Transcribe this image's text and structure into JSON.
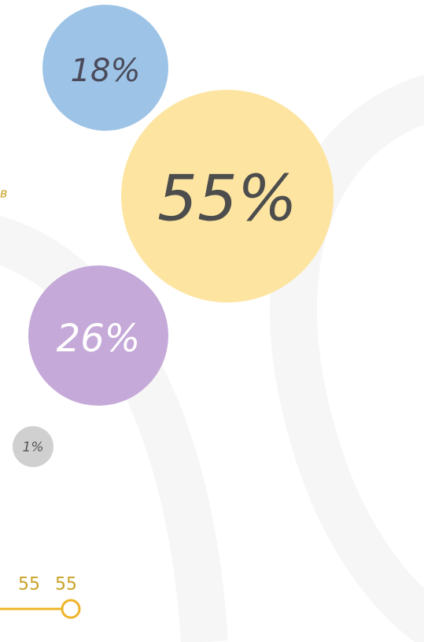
{
  "side_text": "в",
  "bubbles": [
    {
      "label": "18%"
    },
    {
      "label": "55%"
    },
    {
      "label": "26%"
    },
    {
      "label": "1%"
    }
  ],
  "timeline_labels": [
    "55",
    "55"
  ]
}
